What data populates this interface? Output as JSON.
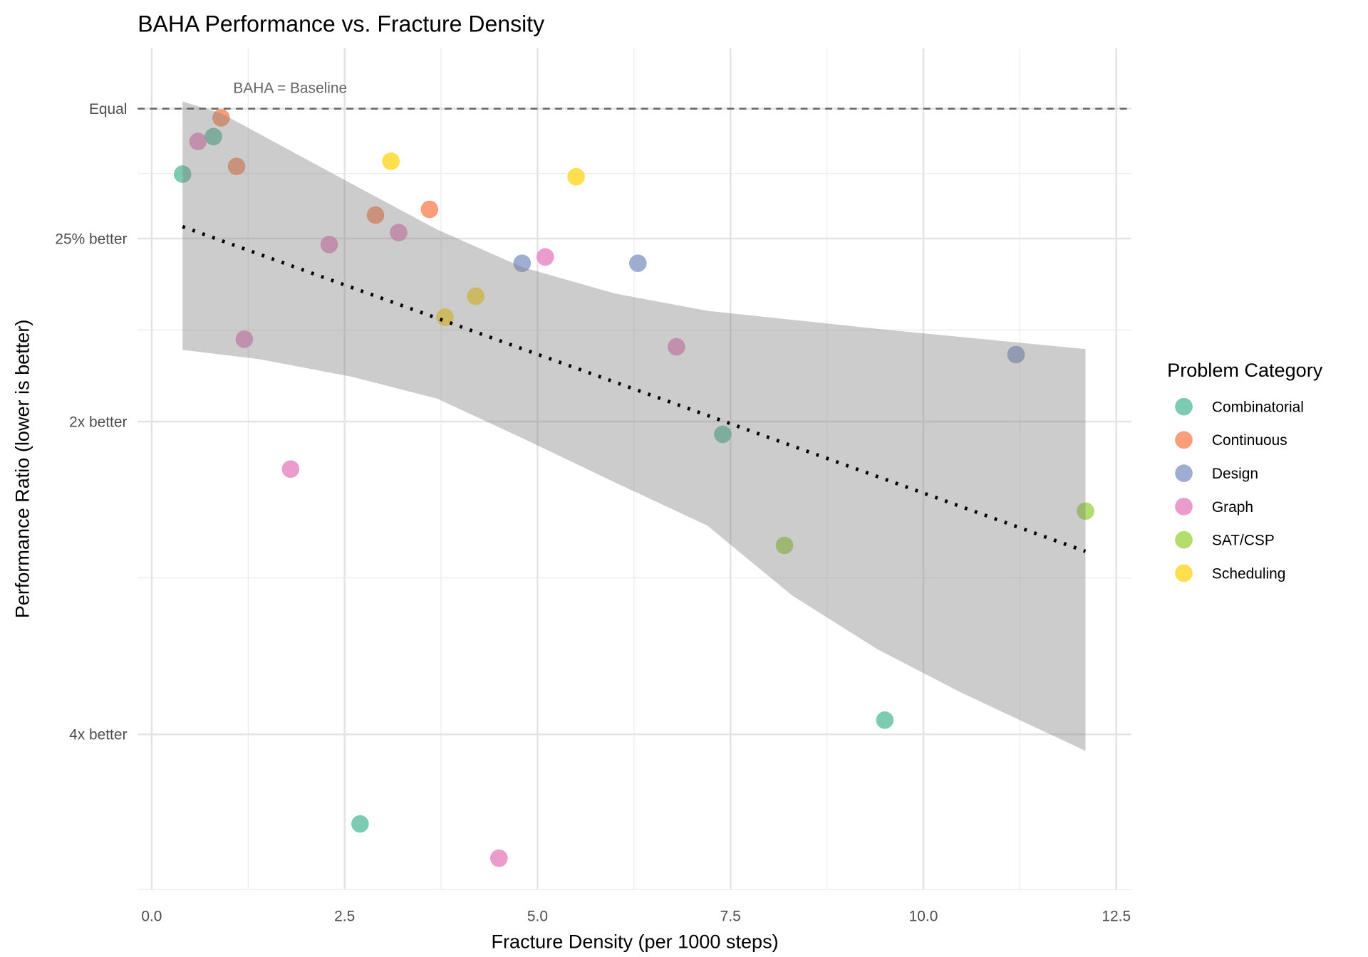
{
  "chart_data": {
    "type": "scatter",
    "title": "BAHA Performance vs. Fracture Density",
    "xlabel": "Fracture Density (per 1000 steps)",
    "ylabel": "Performance Ratio (lower is better)",
    "xlim": [
      -0.4,
      12.5
    ],
    "ylim": [
      0.177,
      1.14
    ],
    "y_scale": "log",
    "grid": true,
    "x_ticks": [
      {
        "value": 0,
        "label": "0.0"
      },
      {
        "value": 2.5,
        "label": "2.5"
      },
      {
        "value": 5,
        "label": "5.0"
      },
      {
        "value": 7.5,
        "label": "7.5"
      },
      {
        "value": 10,
        "label": "10.0"
      },
      {
        "value": 12.5,
        "label": "12.5"
      }
    ],
    "y_ticks": [
      {
        "value": 1.0,
        "label": "Equal"
      },
      {
        "value": 0.75,
        "label": "25% better"
      },
      {
        "value": 0.5,
        "label": "2x better"
      },
      {
        "value": 0.25,
        "label": "4x better"
      }
    ],
    "reference_line": {
      "y": 1.0,
      "style": "dashed",
      "label": "BAHA = Baseline"
    },
    "legend": {
      "title": "Problem Category",
      "placement": "right"
    },
    "series": [
      {
        "name": "Combinatorial",
        "color": "#66C2A5",
        "x": [
          0.4,
          0.8,
          2.7,
          7.4,
          9.5
        ],
        "y": [
          0.865,
          0.94,
          0.205,
          0.486,
          0.258
        ]
      },
      {
        "name": "Continuous",
        "color": "#FC8D62",
        "x": [
          0.9,
          1.1,
          2.9,
          3.6
        ],
        "y": [
          0.98,
          0.88,
          0.79,
          0.8
        ]
      },
      {
        "name": "Design",
        "color": "#8DA0CB",
        "x": [
          4.8,
          6.3,
          11.2
        ],
        "y": [
          0.71,
          0.71,
          0.58
        ]
      },
      {
        "name": "Graph",
        "color": "#E78AC3",
        "x": [
          0.6,
          1.2,
          1.8,
          2.3,
          3.2,
          4.5,
          5.1,
          6.8
        ],
        "y": [
          0.93,
          0.6,
          0.45,
          0.74,
          0.76,
          0.19,
          0.72,
          0.59
        ]
      },
      {
        "name": "SAT/CSP",
        "color": "#A6D854",
        "x": [
          8.2,
          12.1
        ],
        "y": [
          0.38,
          0.41
        ]
      },
      {
        "name": "Scheduling",
        "color": "#FFD92F",
        "x": [
          3.1,
          3.8,
          4.2,
          5.5
        ],
        "y": [
          0.89,
          0.63,
          0.66,
          0.86
        ]
      }
    ],
    "trend_line": {
      "style": "dotted",
      "x": [
        0.4,
        12.1
      ],
      "y": [
        0.77,
        0.375
      ]
    },
    "confidence_band": {
      "upper": {
        "x": [
          0.4,
          0.9,
          2.6,
          3.7,
          4.8,
          6.0,
          7.2,
          9.4,
          12.1
        ],
        "y": [
          1.016,
          0.99,
          0.846,
          0.765,
          0.704,
          0.664,
          0.639,
          0.614,
          0.587
        ]
      },
      "lower": {
        "x": [
          0.4,
          1.4,
          2.6,
          3.7,
          4.8,
          6.0,
          7.2,
          8.3,
          9.4,
          10.5,
          12.1
        ],
        "y": [
          0.586,
          0.574,
          0.552,
          0.526,
          0.482,
          0.437,
          0.397,
          0.34,
          0.302,
          0.274,
          0.241
        ]
      }
    }
  }
}
